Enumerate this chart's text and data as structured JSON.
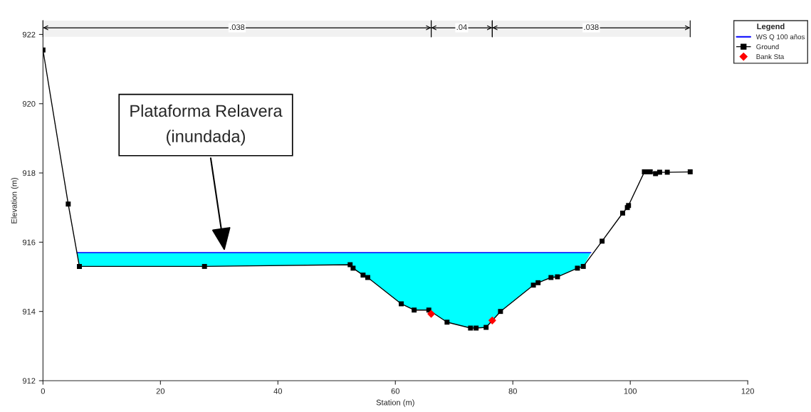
{
  "chart_data": {
    "type": "line",
    "xlabel": "Station (m)",
    "ylabel": "Elevation (m)",
    "legend_title": "Legend",
    "xlim": [
      0,
      120
    ],
    "xticks": [
      0,
      20,
      40,
      60,
      80,
      100,
      120
    ],
    "ylim": [
      912,
      922.4
    ],
    "yticks": [
      912,
      914,
      916,
      918,
      920,
      922
    ],
    "grid": false,
    "legend": "top right",
    "series": [
      {
        "name": "WS Q 100 años",
        "type": "line",
        "color": "#0000ff",
        "marker": "none",
        "x": [
          5.8,
          6.2,
          27.5,
          52.3,
          52.8,
          54.5,
          55.3,
          61.0,
          63.2,
          65.7,
          68.8,
          72.8,
          73.75,
          75.45,
          77.9,
          83.5,
          84.3,
          86.5,
          87.6,
          91.0,
          92.0,
          93.3
        ],
        "values": [
          915.7,
          915.7,
          915.7,
          915.7,
          915.7,
          915.7,
          915.7,
          915.7,
          915.7,
          915.7,
          915.7,
          915.7,
          915.7,
          915.7,
          915.7,
          915.7,
          915.7,
          915.7,
          915.7,
          915.7,
          915.7,
          915.7
        ],
        "lower": [
          915.7,
          915.3,
          915.3,
          915.35,
          915.25,
          915.05,
          914.98,
          914.22,
          914.04,
          914.04,
          913.69,
          913.52,
          913.52,
          913.54,
          914.0,
          914.76,
          914.83,
          914.98,
          915.0,
          915.25,
          915.3,
          915.7
        ],
        "upper": [
          915.7,
          915.7,
          915.7,
          915.7,
          915.7,
          915.7,
          915.7,
          915.7,
          915.7,
          915.7,
          915.7,
          915.7,
          915.7,
          915.7,
          915.7,
          915.7,
          915.7,
          915.7,
          915.7,
          915.7,
          915.7,
          915.7
        ]
      },
      {
        "name": "Ground",
        "color": "#000000",
        "marker": "square",
        "x": [
          0,
          4.3,
          6.2,
          27.5,
          52.3,
          52.8,
          54.5,
          55.3,
          61.0,
          63.2,
          65.7,
          68.8,
          72.8,
          73.75,
          75.45,
          77.9,
          83.5,
          84.3,
          86.5,
          87.6,
          91.0,
          92.0,
          95.2,
          98.7,
          99.5,
          99.7,
          102.4,
          102.9,
          103.4,
          104.3,
          105.0,
          106.3,
          110.2
        ],
        "values": [
          921.55,
          917.1,
          915.3,
          915.3,
          915.35,
          915.25,
          915.05,
          914.98,
          914.22,
          914.04,
          914.04,
          913.69,
          913.52,
          913.52,
          913.54,
          914.0,
          914.76,
          914.83,
          914.98,
          915.0,
          915.25,
          915.3,
          916.03,
          916.84,
          917.0,
          917.06,
          918.03,
          918.03,
          918.03,
          917.98,
          918.02,
          918.02,
          918.03
        ]
      },
      {
        "name": "Bank Sta",
        "type": "scatter",
        "color": "#ff0000",
        "marker": "diamond",
        "x": [
          66.1,
          76.5
        ],
        "values": [
          913.93,
          913.74
        ]
      }
    ],
    "bands": [
      {
        "axis": "x",
        "from": 0,
        "to": 66.1,
        "label": ".038"
      },
      {
        "axis": "x",
        "from": 66.1,
        "to": 76.5,
        "label": ".04"
      },
      {
        "axis": "x",
        "from": 76.5,
        "to": 110.2,
        "label": ".038"
      }
    ],
    "annotations": [
      "Plataforma Relavera\n(inundada)"
    ]
  }
}
